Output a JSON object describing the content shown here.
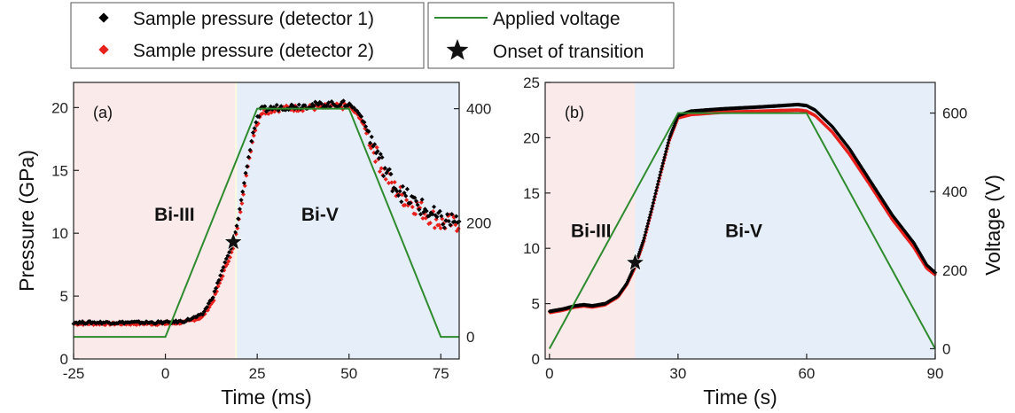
{
  "legend": {
    "detector1": "Sample pressure (detector 1)",
    "detector2": "Sample pressure (detector 2)",
    "voltage": "Applied voltage",
    "onset": "Onset of transition"
  },
  "colors": {
    "detector1": "#000000",
    "detector2": "#e8201c",
    "voltage": "#2e8b2e",
    "phase_bi3_bg": "#fbeaea",
    "phase_bi5_bg": "#e6eefa",
    "boundary_bg": "#fafadc"
  },
  "chart_data": [
    {
      "type": "line",
      "panel_label": "(a)",
      "xlabel": "Time (ms)",
      "ylabel": "Pressure (GPa)",
      "y2label": "",
      "xlim": [
        -25,
        80
      ],
      "ylim": [
        0,
        22
      ],
      "y2lim": [
        -38.6,
        446
      ],
      "xticks": [
        -25,
        0,
        25,
        50,
        75
      ],
      "yticks": [
        0,
        5,
        10,
        15,
        20
      ],
      "y2ticks": [
        0,
        200,
        400
      ],
      "regions": [
        {
          "label": "Bi-III",
          "x": [
            -25,
            19
          ]
        },
        {
          "label": "Bi-V",
          "x": [
            19.5,
            80
          ]
        }
      ],
      "phase_label_positions": [
        {
          "label": "Bi-III",
          "x": -3,
          "y": 11
        },
        {
          "label": "Bi-V",
          "x": 37,
          "y": 11
        }
      ],
      "series": [
        {
          "name": "Sample pressure (detector 1)",
          "axis": "left",
          "x": [
            -25,
            0,
            5,
            10,
            13,
            16,
            18.5,
            20,
            22,
            24,
            26,
            30,
            40,
            50,
            53,
            56,
            59,
            62,
            65,
            70,
            75,
            80
          ],
          "values": [
            2.9,
            2.9,
            3.0,
            3.5,
            5.0,
            7.5,
            9.2,
            11.5,
            15.0,
            18.2,
            19.8,
            20.0,
            20.2,
            20.3,
            19.5,
            17.5,
            15.5,
            14.0,
            13.0,
            12.0,
            11.0,
            11.0
          ]
        },
        {
          "name": "Sample pressure (detector 2)",
          "axis": "left",
          "x": [
            -25,
            0,
            5,
            10,
            13,
            16,
            18.5,
            20,
            22,
            24,
            26,
            30,
            40,
            50,
            53,
            56,
            59,
            62,
            65,
            70,
            75,
            80
          ],
          "values": [
            2.8,
            2.8,
            2.9,
            3.3,
            4.6,
            7.0,
            8.8,
            11.0,
            14.5,
            17.8,
            19.6,
            19.9,
            20.0,
            20.1,
            19.2,
            17.2,
            15.2,
            13.7,
            12.8,
            11.8,
            10.8,
            10.8
          ]
        },
        {
          "name": "Applied voltage",
          "axis": "right",
          "x": [
            -25,
            0,
            25,
            50,
            75,
            80
          ],
          "values": [
            0,
            0,
            400,
            400,
            0,
            0
          ]
        }
      ],
      "onset": {
        "x": 18.5,
        "y": 9.3
      }
    },
    {
      "type": "line",
      "panel_label": "(b)",
      "xlabel": "Time (s)",
      "ylabel": "",
      "y2label": "Voltage (V)",
      "xlim": [
        -1,
        90
      ],
      "ylim": [
        0,
        25
      ],
      "y2lim": [
        -26,
        678
      ],
      "xticks": [
        0,
        30,
        60,
        90
      ],
      "yticks": [
        0,
        5,
        10,
        15,
        20,
        25
      ],
      "y2ticks": [
        0,
        200,
        400,
        600
      ],
      "regions": [
        {
          "label": "Bi-III",
          "x": [
            -1,
            20
          ]
        },
        {
          "label": "Bi-V",
          "x": [
            20,
            90
          ]
        }
      ],
      "phase_label_positions": [
        {
          "label": "Bi-III",
          "x": 5,
          "y": 11
        },
        {
          "label": "Bi-V",
          "x": 41,
          "y": 11
        }
      ],
      "series": [
        {
          "name": "Sample pressure (detector 1)",
          "axis": "left",
          "x": [
            0,
            3,
            6,
            8,
            10,
            13,
            16,
            18,
            20,
            22,
            24,
            26,
            28,
            30,
            33,
            40,
            50,
            58,
            60,
            62,
            66,
            70,
            75,
            80,
            85,
            88,
            90
          ],
          "values": [
            4.3,
            4.5,
            4.8,
            4.9,
            4.8,
            5.0,
            5.7,
            6.8,
            8.5,
            10.8,
            13.8,
            17.0,
            20.0,
            22.0,
            22.4,
            22.6,
            22.8,
            23.0,
            22.9,
            22.5,
            21.0,
            19.0,
            16.0,
            13.0,
            10.5,
            8.5,
            7.8
          ]
        },
        {
          "name": "Sample pressure (detector 2)",
          "axis": "left",
          "x": [
            0,
            3,
            6,
            8,
            10,
            13,
            16,
            18,
            20,
            22,
            24,
            26,
            28,
            30,
            33,
            40,
            50,
            58,
            60,
            62,
            66,
            70,
            75,
            80,
            85,
            88,
            90
          ],
          "values": [
            4.2,
            4.4,
            4.7,
            4.8,
            4.7,
            4.9,
            5.6,
            6.7,
            8.3,
            10.6,
            13.6,
            16.8,
            19.8,
            21.8,
            22.1,
            22.3,
            22.4,
            22.5,
            22.4,
            22.0,
            20.5,
            18.5,
            15.6,
            12.6,
            10.1,
            8.2,
            7.6
          ]
        },
        {
          "name": "Applied voltage",
          "axis": "right",
          "x": [
            0,
            30,
            60,
            90
          ],
          "values": [
            0,
            600,
            600,
            0
          ]
        }
      ],
      "onset": {
        "x": 20,
        "y": 8.7
      }
    }
  ]
}
